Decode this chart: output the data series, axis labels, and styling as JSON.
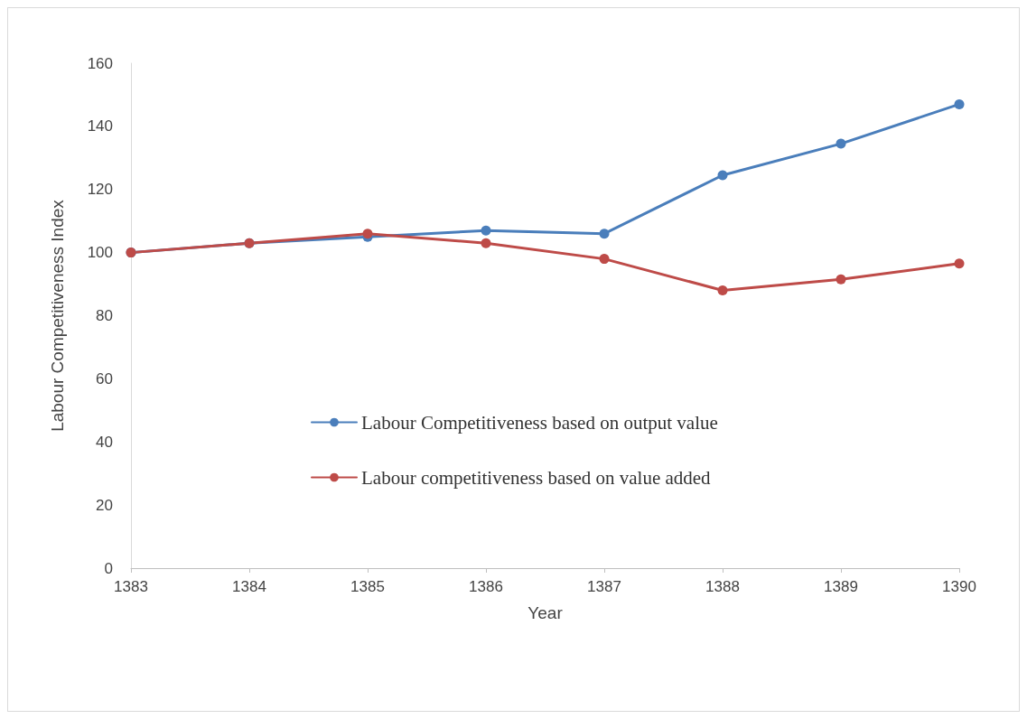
{
  "chart_data": {
    "type": "line",
    "xlabel": "Year",
    "ylabel": "Labour Competitiveness Index",
    "categories": [
      "1383",
      "1384",
      "1385",
      "1386",
      "1387",
      "1388",
      "1389",
      "1390"
    ],
    "series": [
      {
        "name": "Labour Competitiveness based on output value",
        "color": "#4a7ebb",
        "values": [
          100,
          103,
          105,
          107,
          106,
          124.5,
          134.5,
          147
        ]
      },
      {
        "name": "Labour competitiveness based on value added",
        "color": "#be4b48",
        "values": [
          100,
          103,
          106,
          103,
          98,
          88,
          91.5,
          96.5
        ]
      }
    ],
    "ylim": [
      0,
      160
    ],
    "yticks": [
      0,
      20,
      40,
      60,
      80,
      100,
      120,
      140,
      160
    ],
    "grid": false,
    "legend": "center",
    "marker": "circle",
    "line_style": "solid"
  }
}
